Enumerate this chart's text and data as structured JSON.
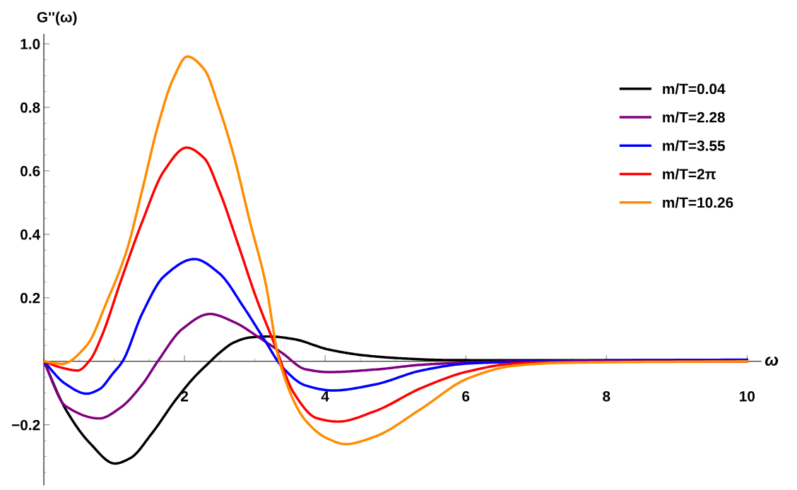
{
  "chart_data": {
    "type": "line",
    "ylabel": "G''(ω)",
    "xlabel": "ω",
    "xlim": [
      0,
      10.2
    ],
    "ylim": [
      -0.39,
      1.03
    ],
    "xticks": [
      2,
      4,
      6,
      8,
      10
    ],
    "yticks": [
      {
        "value": -0.2,
        "label": "−0.2"
      },
      0.2,
      0.4,
      0.6,
      0.8,
      {
        "value": 1.0,
        "label": "1.0"
      }
    ],
    "legend": "right",
    "grid": false,
    "line_style": "solid",
    "marker": "none",
    "series": [
      {
        "name": "m/T=0.04",
        "color": "#000000",
        "x": [
          0,
          0.31,
          0.66,
          1.01,
          1.23,
          1.53,
          1.88,
          2.14,
          2.37,
          2.49,
          2.71,
          2.93,
          3.15,
          3.22,
          3.55,
          4.05,
          4.54,
          5.03,
          5.7,
          7,
          10
        ],
        "values": [
          0,
          -0.151,
          -0.259,
          -0.322,
          -0.305,
          -0.229,
          -0.12,
          -0.05,
          0,
          0.025,
          0.06,
          0.075,
          0.078,
          0.078,
          0.07,
          0.037,
          0.019,
          0.01,
          0.004,
          0.003,
          0.003
        ]
      },
      {
        "name": "m/T=2.28",
        "color": "#800080",
        "x": [
          0,
          0.31,
          0.79,
          1.09,
          1.4,
          1.62,
          1.97,
          2.36,
          2.71,
          3.06,
          3.39,
          3.72,
          4.05,
          4.71,
          5.37,
          6.03,
          7,
          10
        ],
        "values": [
          0,
          -0.141,
          -0.18,
          -0.146,
          -0.073,
          0,
          0.102,
          0.149,
          0.123,
          0.075,
          0.026,
          -0.025,
          -0.034,
          -0.026,
          -0.011,
          -0.004,
          0,
          0
        ]
      },
      {
        "name": "m/T=3.55",
        "color": "#0000ff",
        "x": [
          0,
          0.3,
          0.61,
          0.79,
          0.98,
          1.12,
          1.4,
          1.71,
          2.14,
          2.49,
          2.84,
          3.15,
          3.39,
          3.72,
          4.11,
          4.71,
          5.37,
          6.03,
          6.69,
          8,
          10
        ],
        "values": [
          0,
          -0.07,
          -0.102,
          -0.088,
          -0.039,
          0,
          0.151,
          0.268,
          0.322,
          0.278,
          0.171,
          0.063,
          -0.018,
          -0.076,
          -0.092,
          -0.073,
          -0.029,
          -0.007,
          -0.002,
          0.003,
          0.005
        ]
      },
      {
        "name": "m/T=2π",
        "color": "#ff0000",
        "x": [
          0,
          0.25,
          0.48,
          0.66,
          0.83,
          1.09,
          1.4,
          1.71,
          2.03,
          2.28,
          2.49,
          2.76,
          3.02,
          3.28,
          3.55,
          3.88,
          4.18,
          4.71,
          5.37,
          6.03,
          6.69,
          7.35,
          10
        ],
        "values": [
          0,
          -0.02,
          -0.029,
          0.005,
          0.083,
          0.25,
          0.44,
          0.6,
          0.673,
          0.64,
          0.54,
          0.37,
          0.2,
          0.054,
          -0.098,
          -0.179,
          -0.19,
          -0.157,
          -0.084,
          -0.032,
          -0.007,
          -0.002,
          0
        ]
      },
      {
        "name": "m/T=10.26",
        "color": "#ff8c00",
        "x": [
          0,
          0.26,
          0.61,
          0.9,
          1.18,
          1.4,
          1.62,
          1.84,
          2.04,
          2.28,
          2.49,
          2.71,
          2.93,
          3.15,
          3.35,
          3.72,
          4.05,
          4.29,
          4.71,
          5.37,
          6.03,
          6.69,
          7.35,
          10
        ],
        "values": [
          0,
          -0.008,
          0.05,
          0.19,
          0.35,
          0.54,
          0.74,
          0.89,
          0.96,
          0.92,
          0.8,
          0.64,
          0.44,
          0.25,
          0,
          -0.186,
          -0.245,
          -0.261,
          -0.237,
          -0.149,
          -0.054,
          -0.014,
          -0.005,
          0
        ]
      }
    ]
  }
}
